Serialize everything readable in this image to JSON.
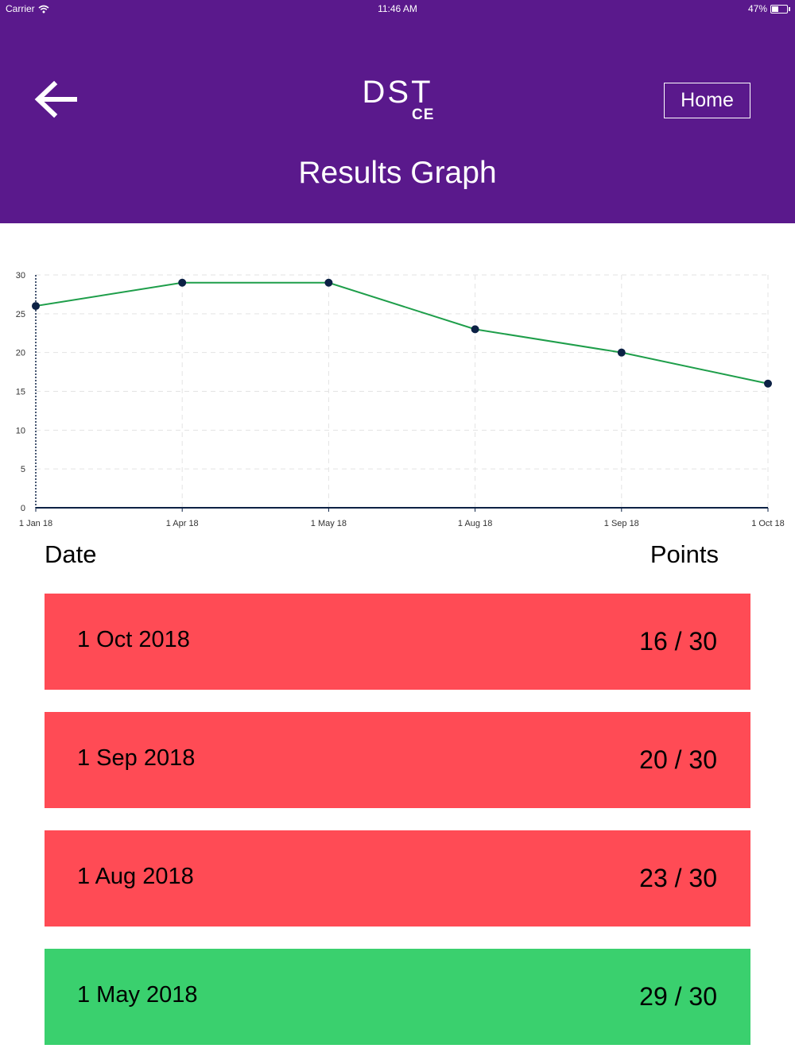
{
  "status": {
    "carrier": "Carrier",
    "time": "11:46 AM",
    "battery": "47%",
    "battery_level": 0.47
  },
  "header": {
    "logo": "DST",
    "logo_mark": "CE",
    "home_label": "Home",
    "title": "Results Graph",
    "background": "#5a198c"
  },
  "icons": {
    "back": "arrow-left-icon",
    "wifi": "wifi-icon",
    "battery": "battery-icon"
  },
  "chart_data": {
    "type": "line",
    "title": "",
    "xlabel": "",
    "ylabel": "",
    "x_ticks": [
      "1 Jan 18",
      "1 Apr 18",
      "1 May 18",
      "1 Aug 18",
      "1 Sep 18",
      "1 Oct 18"
    ],
    "y_ticks": [
      0,
      5,
      10,
      15,
      20,
      25,
      30
    ],
    "ylim": [
      0,
      30
    ],
    "grid": true,
    "series": [
      {
        "x": [
          "1 Jan 18",
          "1 Apr 18",
          "1 May 18",
          "1 Aug 18",
          "1 Sep 18",
          "1 Oct 18"
        ],
        "values": [
          26,
          29,
          29,
          23,
          20,
          16
        ],
        "line_color": "#1e9e4a",
        "point_color": "#0c2145"
      }
    ]
  },
  "list": {
    "date_header": "Date",
    "points_header": "Points",
    "rows": [
      {
        "date": "1 Oct 2018",
        "points": "16 / 30",
        "color": "#ff4b55"
      },
      {
        "date": "1 Sep 2018",
        "points": "20 / 30",
        "color": "#ff4b55"
      },
      {
        "date": "1 Aug 2018",
        "points": "23 / 30",
        "color": "#ff4b55"
      },
      {
        "date": "1 May 2018",
        "points": "29 / 30",
        "color": "#3ad06e"
      }
    ]
  }
}
